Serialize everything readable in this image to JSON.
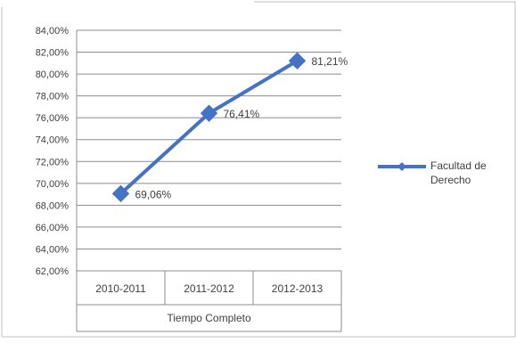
{
  "chart_data": {
    "type": "line",
    "categories": [
      "2010-2011",
      "2011-2012",
      "2012-2013"
    ],
    "category_group_label": "Tiempo Completo",
    "series": [
      {
        "name": "Facultad de Derecho",
        "values": [
          69.06,
          76.41,
          81.21
        ],
        "data_labels": [
          "69,06%",
          "76,41%",
          "81,21%"
        ],
        "color": "#4472c4"
      }
    ],
    "ylim": [
      62,
      84
    ],
    "y_step": 2,
    "y_tick_labels": [
      "62,00%",
      "64,00%",
      "66,00%",
      "68,00%",
      "70,00%",
      "72,00%",
      "74,00%",
      "76,00%",
      "78,00%",
      "80,00%",
      "82,00%",
      "84,00%"
    ],
    "legend": {
      "position": "right",
      "label_lines": [
        "Facultad de",
        "Derecho"
      ]
    },
    "grid": true,
    "colors": {
      "gridline": "#8c8c8c",
      "border": "#595959",
      "text": "#404040"
    }
  }
}
